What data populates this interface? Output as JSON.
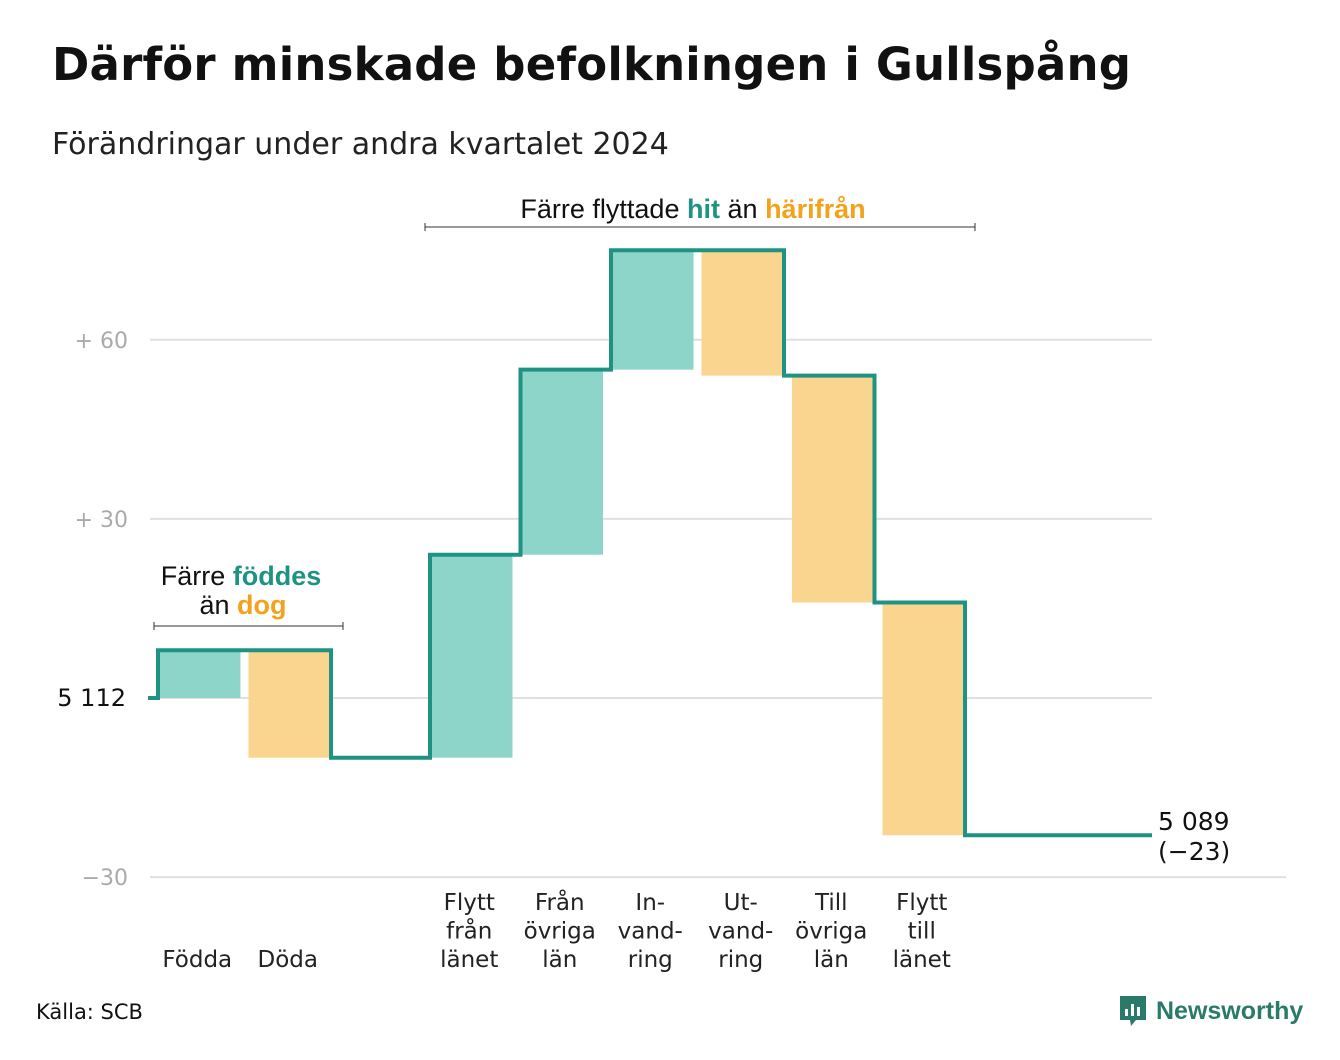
{
  "title": "Därför minskade befolkningen i Gullspång",
  "subtitle": "Förändringar under andra kvartalet 2024",
  "source": "Källa: SCB",
  "brand": {
    "name": "Newsworthy",
    "icon": "newsworthy-logo-icon"
  },
  "colors": {
    "increase_fill": "#8dd4c9",
    "decrease_fill": "#fad58f",
    "line": "#1e9383",
    "accent_green": "#1e9383",
    "accent_orange": "#f4a21e",
    "grid": "#e0e0e0",
    "tick": "#aaaaaa"
  },
  "annotations": {
    "births": {
      "prefix": "Färre",
      "green_word": "föddes",
      "line2_prefix": "än",
      "orange_word": "dog"
    },
    "migration": {
      "prefix": "Färre flyttade",
      "green_word": "hit",
      "middle": "än",
      "orange_word": "härifrån"
    }
  },
  "chart_data": {
    "type": "waterfall",
    "title": "Därför minskade befolkningen i Gullspång",
    "subtitle": "Förändringar under andra kvartalet 2024",
    "start_value": 5112,
    "start_label": "5 112",
    "end_value": 5089,
    "end_label": "5 089",
    "end_change_label": "(−23)",
    "y_range": [
      -30,
      80
    ],
    "y_ticks": [
      {
        "value": 60,
        "label": "+ 60"
      },
      {
        "value": 30,
        "label": "+ 30"
      },
      {
        "value": 0,
        "label": "5 112"
      },
      {
        "value": -30,
        "label": "−30"
      }
    ],
    "grid": true,
    "steps": [
      {
        "label_lines": [
          "Födda"
        ],
        "change": 8,
        "kind": "increase"
      },
      {
        "label_lines": [
          "Döda"
        ],
        "change": -18,
        "kind": "decrease"
      },
      {
        "label_lines": [
          "Flytt",
          "från",
          "länet"
        ],
        "change": 34,
        "kind": "increase"
      },
      {
        "label_lines": [
          "Från",
          "övriga",
          "län"
        ],
        "change": 31,
        "kind": "increase"
      },
      {
        "label_lines": [
          "In-",
          "vand-",
          "ring"
        ],
        "change": 20,
        "kind": "increase"
      },
      {
        "label_lines": [
          "Ut-",
          "vand-",
          "ring"
        ],
        "change": -21,
        "kind": "decrease"
      },
      {
        "label_lines": [
          "Till",
          "övriga",
          "län"
        ],
        "change": -38,
        "kind": "decrease"
      },
      {
        "label_lines": [
          "Flytt",
          "till",
          "länet"
        ],
        "change": -39,
        "kind": "decrease"
      }
    ]
  }
}
